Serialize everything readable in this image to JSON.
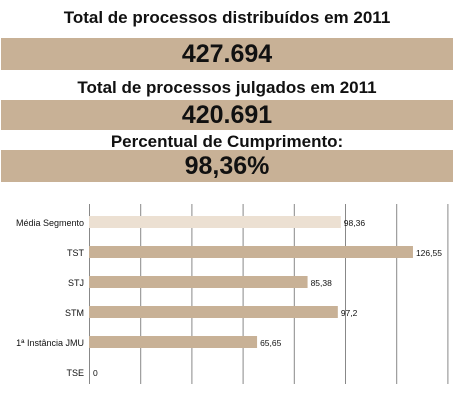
{
  "summary": {
    "distributed_title": "Total de processos distribuídos em 2011",
    "distributed_value": "427.694",
    "judged_title": "Total de processos julgados em 2011",
    "judged_value": "420.691",
    "percent_title": "Percentual de Cumprimento:",
    "percent_value": "98,36%"
  },
  "colors": {
    "band": "#c8b196",
    "bar": "#c8b196",
    "bar_highlight": "#ece0d2",
    "grid": "#888888"
  },
  "chart_data": {
    "type": "bar",
    "orientation": "horizontal",
    "categories": [
      "Média Segmento",
      "TST",
      "STJ",
      "STM",
      "1ª Instância JMU",
      "TSE"
    ],
    "values": [
      98.36,
      126.55,
      85.38,
      97.2,
      65.65,
      0
    ],
    "value_labels": [
      "98,36",
      "126,55",
      "85,38",
      "97,2",
      "65,65",
      "0"
    ],
    "xlim": [
      0,
      140
    ],
    "grid": true,
    "title": "",
    "xlabel": "",
    "ylabel": ""
  }
}
